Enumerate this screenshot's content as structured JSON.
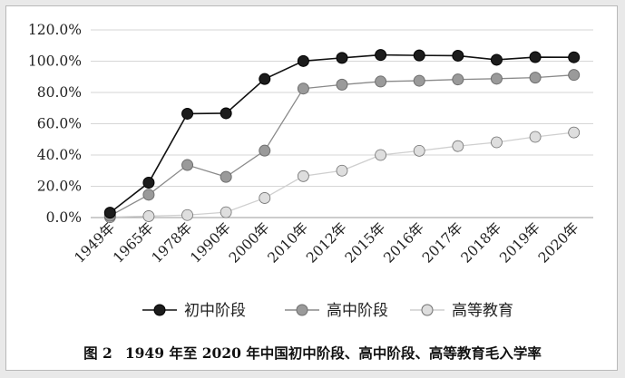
{
  "chart_data": {
    "type": "line",
    "categories": [
      "1949年",
      "1965年",
      "1978年",
      "1990年",
      "2000年",
      "2010年",
      "2012年",
      "2015年",
      "2016年",
      "2017年",
      "2018年",
      "2019年",
      "2020年"
    ],
    "series": [
      {
        "name": "初中阶段",
        "values": [
          3.1,
          22.3,
          66.4,
          66.7,
          88.6,
          100.1,
          102.1,
          104.0,
          103.7,
          103.5,
          100.9,
          102.6,
          102.5
        ],
        "color": "#1c1c1c",
        "marker_fill": "#1c1c1c",
        "line": "#111111"
      },
      {
        "name": "高中阶段",
        "values": [
          1.1,
          14.6,
          33.6,
          26.0,
          42.8,
          82.5,
          85.0,
          87.0,
          87.5,
          88.3,
          88.8,
          89.5,
          91.2
        ],
        "color": "#999999",
        "marker_fill": "#9a9a9a",
        "line": "#8a8a8a"
      },
      {
        "name": "高等教育",
        "values": [
          0.26,
          0.9,
          1.6,
          3.4,
          12.5,
          26.5,
          30.0,
          40.0,
          42.7,
          45.7,
          48.1,
          51.6,
          54.4
        ],
        "color": "#dcdcdc",
        "marker_fill": "#dedede",
        "line": "#cfcfcf"
      }
    ],
    "y_ticks": [
      "0.0%",
      "20.0%",
      "40.0%",
      "60.0%",
      "80.0%",
      "100.0%",
      "120.0%"
    ],
    "ylim": [
      0,
      120
    ],
    "grid": true,
    "legend_position": "bottom"
  },
  "caption": {
    "figure": "图 2",
    "text": "1949 年至 2020 年中国初中阶段、高中阶段、高等教育毛入学率"
  }
}
